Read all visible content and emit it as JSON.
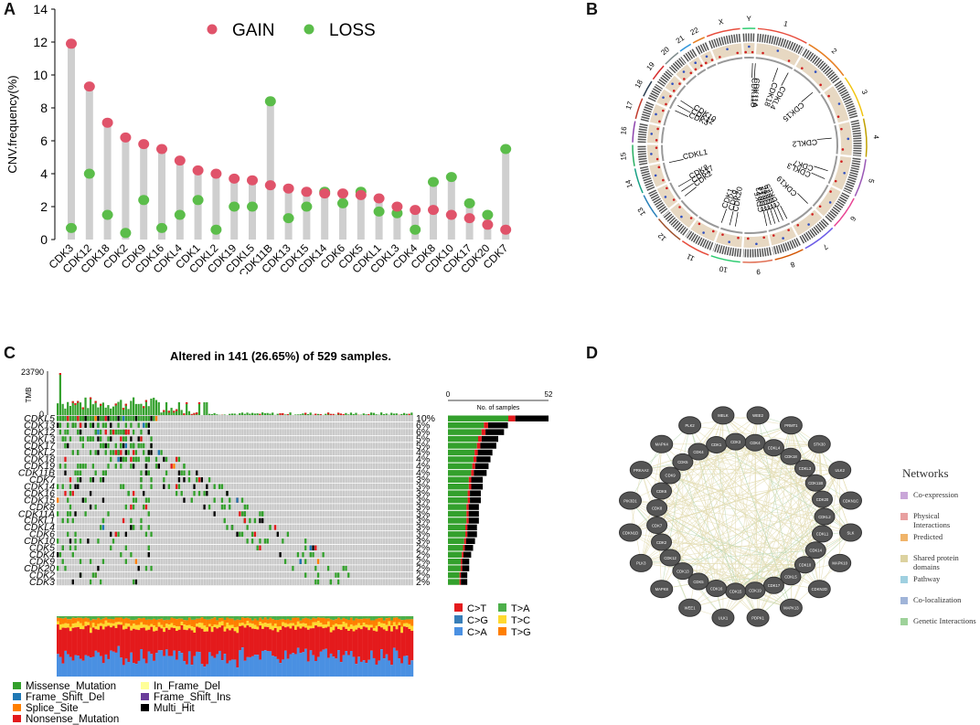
{
  "panel_labels": {
    "a": "A",
    "b": "B",
    "c": "C",
    "d": "D"
  },
  "chart_data": [
    {
      "type": "lollipop",
      "panel": "A",
      "ylabel": "CNV.frequency(%)",
      "ylim": [
        0,
        14
      ],
      "yticks": [
        0,
        2,
        4,
        6,
        8,
        10,
        12,
        14
      ],
      "legend": {
        "position": "top",
        "entries": [
          {
            "name": "GAIN",
            "color": "#e0536a"
          },
          {
            "name": "LOSS",
            "color": "#5bbd4a"
          }
        ]
      },
      "categories": [
        "CDK3",
        "CDK12",
        "CDK18",
        "CDK2",
        "CDK9",
        "CDK16",
        "CDKL4",
        "CDK1",
        "CDKL2",
        "CDK19",
        "CDKL5",
        "CDK11B",
        "CDK13",
        "CDK15",
        "CDK14",
        "CDK6",
        "CDK5",
        "CDKL1",
        "CDKL3",
        "CDK4",
        "CDK8",
        "CDK10",
        "CDK17",
        "CDK20",
        "CDK7"
      ],
      "series": [
        {
          "name": "GAIN",
          "values": [
            11.9,
            9.3,
            7.1,
            6.2,
            5.8,
            5.5,
            4.8,
            4.2,
            4.0,
            3.7,
            3.6,
            3.3,
            3.1,
            2.9,
            2.8,
            2.8,
            2.7,
            2.5,
            2.0,
            1.8,
            1.8,
            1.5,
            1.3,
            0.9,
            0.6
          ]
        },
        {
          "name": "LOSS",
          "values": [
            0.7,
            4.0,
            1.5,
            0.4,
            2.4,
            0.7,
            1.5,
            2.4,
            0.6,
            2.0,
            2.0,
            8.4,
            1.3,
            2.0,
            2.9,
            2.2,
            2.9,
            1.7,
            1.6,
            0.6,
            3.5,
            3.8,
            2.2,
            1.5,
            5.5
          ]
        }
      ]
    },
    {
      "type": "circos",
      "panel": "B",
      "chromosomes": [
        "1",
        "2",
        "3",
        "4",
        "5",
        "6",
        "7",
        "8",
        "9",
        "10",
        "11",
        "12",
        "13",
        "14",
        "15",
        "16",
        "17",
        "18",
        "19",
        "20",
        "21",
        "22",
        "X",
        "Y"
      ],
      "gene_labels": [
        "CDK11B",
        "CDK11A",
        "CDK18",
        "CDKL4",
        "CDK15",
        "CDKL2",
        "CDK7",
        "CDKL3",
        "CDK19",
        "CDKL1",
        "CDK3",
        "CDK12",
        "CDK10",
        "CDK8",
        "CDK17",
        "CDK2",
        "CDK1",
        "CDK9",
        "CDK20",
        "CDK5",
        "CDK13",
        "CDK14",
        "CDK6",
        "CDK16",
        "CDKL5"
      ]
    },
    {
      "type": "oncoplot",
      "panel": "C",
      "title": "Altered in 141 (26.65%) of 529 samples.",
      "tmb_label": "TMB",
      "tmb_max": "23790",
      "tmb_min": "0",
      "samples_axis_label": "No. of samples",
      "samples_axis_min": "0",
      "samples_axis_max": "52",
      "genes": [
        "CDKL5",
        "CDK13",
        "CDK12",
        "CDKL3",
        "CDK17",
        "CDKL2",
        "CDK18",
        "CDK19",
        "CDK11B",
        "CDK7",
        "CDK14",
        "CDK16",
        "CDK15",
        "CDK8",
        "CDK11A",
        "CDKL1",
        "CDKL4",
        "CDK6",
        "CDK10",
        "CDK5",
        "CDK4",
        "CDK9",
        "CDK20",
        "CDK2",
        "CDK3"
      ],
      "percentages": [
        "10%",
        "6%",
        "6%",
        "5%",
        "5%",
        "4%",
        "4%",
        "4%",
        "4%",
        "3%",
        "3%",
        "3%",
        "3%",
        "3%",
        "3%",
        "3%",
        "3%",
        "3%",
        "3%",
        "2%",
        "2%",
        "2%",
        "2%",
        "2%",
        "2%"
      ],
      "sample_counts": [
        52,
        31,
        29,
        26,
        25,
        23,
        22,
        21,
        20,
        18,
        18,
        17,
        17,
        16,
        16,
        16,
        15,
        15,
        14,
        13,
        12,
        11,
        11,
        10,
        10
      ],
      "variant_legend": [
        {
          "name": "Missense_Mutation",
          "color": "#33a02c"
        },
        {
          "name": "In_Frame_Del",
          "color": "#ffff99"
        },
        {
          "name": "Frame_Shift_Del",
          "color": "#1f78b4"
        },
        {
          "name": "Frame_Shift_Ins",
          "color": "#6a3d9a"
        },
        {
          "name": "Splice_Site",
          "color": "#ff7f00"
        },
        {
          "name": "Multi_Hit",
          "color": "#000000"
        },
        {
          "name": "Nonsense_Mutation",
          "color": "#e31a1c"
        }
      ],
      "titv_legend": [
        {
          "name": "C>T",
          "color": "#e41a1c"
        },
        {
          "name": "T>A",
          "color": "#4daf4a"
        },
        {
          "name": "C>G",
          "color": "#377eb8"
        },
        {
          "name": "T>C",
          "color": "#ffd92f"
        },
        {
          "name": "C>A",
          "color": "#4a90e2"
        },
        {
          "name": "T>G",
          "color": "#ff7f00"
        }
      ]
    },
    {
      "type": "network",
      "panel": "D",
      "outer_nodes": [
        "WEE2",
        "PRMT1",
        "STK30",
        "ULK2",
        "CDKN1C",
        "SLK",
        "MAPK10",
        "CDKN2D",
        "MAPK13",
        "PDPK1",
        "ULK1",
        "WEE1",
        "MAPK8",
        "PLK3",
        "CDKN1D",
        "PIK3D1",
        "PRKAA2",
        "MAPK4",
        "PLK2",
        "MELK"
      ],
      "inner_nodes": [
        "CDK4",
        "CDKL4",
        "CDK18",
        "CDKL3",
        "CDK11B",
        "CDK20",
        "CDKL2",
        "CDKL1",
        "CDK14",
        "CDK10",
        "CDKL5",
        "CDK17",
        "CDK19",
        "CDK15",
        "CDK16",
        "CDK5",
        "CDK13",
        "CDK12",
        "CDK2",
        "CDK7",
        "CDK8",
        "CDK6",
        "CDK9",
        "CDK5",
        "CDK4",
        "CDK1",
        "CDK3"
      ],
      "legend_title": "Networks",
      "legend": [
        {
          "name": "Co-expression",
          "color": "#c9a6d8"
        },
        {
          "name": "Physical Interactions",
          "color": "#e8a0a0"
        },
        {
          "name": "Predicted",
          "color": "#f0b46a"
        },
        {
          "name": "Shared protein domains",
          "color": "#dcd2a0"
        },
        {
          "name": "Pathway",
          "color": "#9fd0e0"
        },
        {
          "name": "Co-localization",
          "color": "#a0b4d8"
        },
        {
          "name": "Genetic Interactions",
          "color": "#9ed29a"
        }
      ]
    }
  ]
}
